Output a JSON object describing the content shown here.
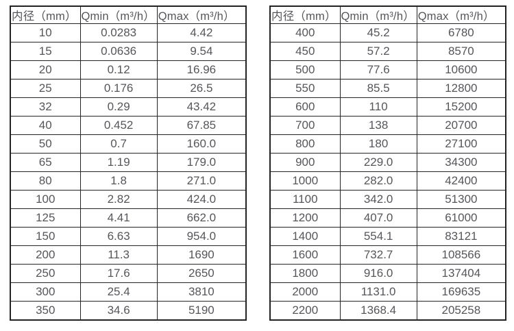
{
  "colors": {
    "background": "#ffffff",
    "table_border": "#222222",
    "text": "#55565a"
  },
  "tables": [
    {
      "name": "small-diameters",
      "headers": [
        "内径（mm）",
        "Qmin（m³/h）",
        "Qmax（m³/h）"
      ],
      "rows": [
        [
          "10",
          "0.0283",
          "4.42"
        ],
        [
          "15",
          "0.0636",
          "9.54"
        ],
        [
          "20",
          "0.12",
          "16.96"
        ],
        [
          "25",
          "0.176",
          "26.5"
        ],
        [
          "32",
          "0.29",
          "43.42"
        ],
        [
          "40",
          "0.452",
          "67.85"
        ],
        [
          "50",
          "0.7",
          "160.0"
        ],
        [
          "65",
          "1.19",
          "179.0"
        ],
        [
          "80",
          "1.8",
          "271.0"
        ],
        [
          "100",
          "2.82",
          "424.0"
        ],
        [
          "125",
          "4.41",
          "662.0"
        ],
        [
          "150",
          "6.63",
          "954.0"
        ],
        [
          "200",
          "11.3",
          "1690"
        ],
        [
          "250",
          "17.6",
          "2650"
        ],
        [
          "300",
          "25.4",
          "3810"
        ],
        [
          "350",
          "34.6",
          "5190"
        ]
      ]
    },
    {
      "name": "large-diameters",
      "headers": [
        "内径（mm）",
        "Qmin（m³/h）",
        "Qmax（m³/h）"
      ],
      "rows": [
        [
          "400",
          "45.2",
          "6780"
        ],
        [
          "450",
          "57.2",
          "8570"
        ],
        [
          "500",
          "77.6",
          "10600"
        ],
        [
          "550",
          "85.5",
          "12800"
        ],
        [
          "600",
          "110",
          "15200"
        ],
        [
          "700",
          "138",
          "20700"
        ],
        [
          "800",
          "180",
          "27100"
        ],
        [
          "900",
          "229.0",
          "34300"
        ],
        [
          "1000",
          "282.0",
          "42400"
        ],
        [
          "1100",
          "342.0",
          "51300"
        ],
        [
          "1200",
          "407.0",
          "61000"
        ],
        [
          "1400",
          "554.1",
          "83121"
        ],
        [
          "1600",
          "732.7",
          "108566"
        ],
        [
          "1800",
          "916.0",
          "137404"
        ],
        [
          "2000",
          "1131.0",
          "169635"
        ],
        [
          "2200",
          "1368.4",
          "205258"
        ]
      ]
    }
  ]
}
